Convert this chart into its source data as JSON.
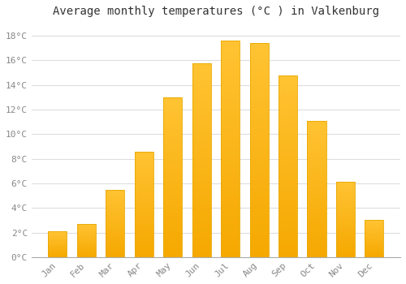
{
  "title": "Average monthly temperatures (°C ) in Valkenburg",
  "months": [
    "Jan",
    "Feb",
    "Mar",
    "Apr",
    "May",
    "Jun",
    "Jul",
    "Aug",
    "Sep",
    "Oct",
    "Nov",
    "Dec"
  ],
  "values": [
    2.1,
    2.7,
    5.5,
    8.6,
    13.0,
    15.8,
    17.6,
    17.4,
    14.8,
    11.1,
    6.1,
    3.0
  ],
  "bar_color_top": "#FFC333",
  "bar_color_bottom": "#F5A800",
  "bar_edge_color": "#E8A800",
  "background_color": "#FFFFFF",
  "plot_bg_color": "#FFFFFF",
  "grid_color": "#DDDDDD",
  "ylim": [
    0,
    19
  ],
  "yticks": [
    0,
    2,
    4,
    6,
    8,
    10,
    12,
    14,
    16,
    18
  ],
  "ytick_labels": [
    "0°C",
    "2°C",
    "4°C",
    "6°C",
    "8°C",
    "10°C",
    "12°C",
    "14°C",
    "16°C",
    "18°C"
  ],
  "title_fontsize": 10,
  "tick_fontsize": 8,
  "font_family": "monospace",
  "tick_color": "#888888"
}
